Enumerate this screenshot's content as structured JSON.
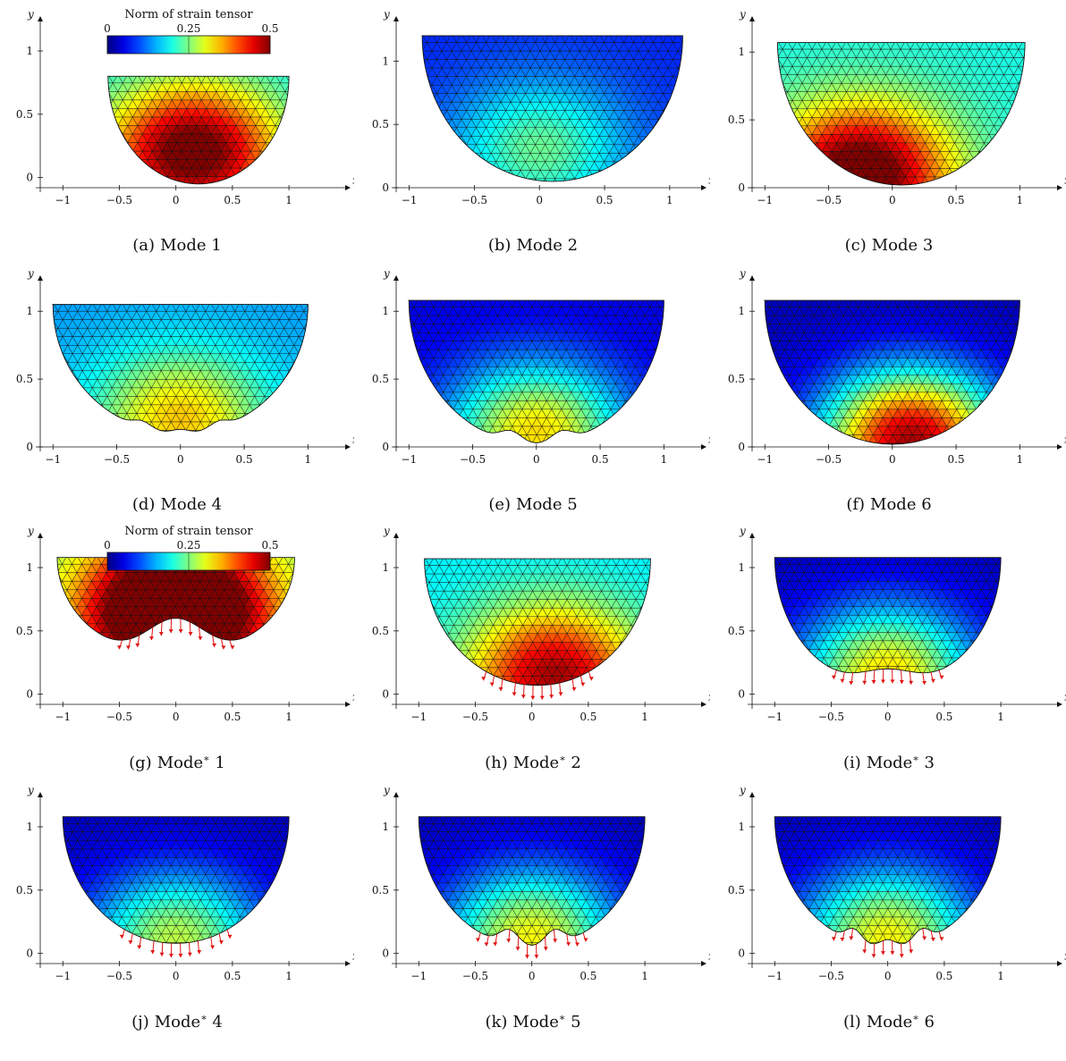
{
  "colorbar": {
    "title": "Norm of strain tensor",
    "ticks": [
      "0",
      "0.25",
      "0.5"
    ]
  },
  "axes": {
    "xlabel": "x",
    "ylabel": "y"
  },
  "panels": [
    {
      "id": "a",
      "label": "(a)",
      "caption": "Mode",
      "star": false,
      "number": "1",
      "xticks": [
        "−1",
        "−0.5",
        "0",
        "0.5",
        "1"
      ],
      "yticks": [
        "0",
        "0.5",
        "1"
      ],
      "xlim": [
        -1.2,
        1.45
      ],
      "ylim": [
        -0.08,
        1.12
      ],
      "top_y": 0.8,
      "bottom_y": -0.05,
      "half_width": 0.8,
      "center_x": 0.2,
      "dent": 0.0,
      "bumps": 0,
      "hot": 0.35,
      "hot_x": 0.15,
      "hot_y": 0.2,
      "base": 0.18,
      "colorbar": true,
      "arrows": false
    },
    {
      "id": "b",
      "label": "(b)",
      "caption": "Mode",
      "star": false,
      "number": "2",
      "xticks": [
        "−1",
        "−0.5",
        "0",
        "0.5",
        "1"
      ],
      "yticks": [
        "0",
        "0.5",
        "1"
      ],
      "xlim": [
        -1.1,
        1.2
      ],
      "ylim": [
        0,
        1.2
      ],
      "top_y": 1.2,
      "bottom_y": 0.05,
      "half_width": 1.0,
      "center_x": 0.1,
      "dent": 0.0,
      "bumps": 0,
      "hot": 0.16,
      "hot_x": 0.0,
      "hot_y": 0.3,
      "base": 0.08,
      "colorbar": false,
      "arrows": false
    },
    {
      "id": "c",
      "label": "(c)",
      "caption": "Mode",
      "star": false,
      "number": "3",
      "xticks": [
        "−1",
        "−0.5",
        "0",
        "0.5",
        "1"
      ],
      "yticks": [
        "0",
        "0.5",
        "1"
      ],
      "xlim": [
        -1.1,
        1.25
      ],
      "ylim": [
        0,
        1.12
      ],
      "top_y": 1.07,
      "bottom_y": 0.02,
      "half_width": 0.97,
      "center_x": 0.07,
      "dent": 0.0,
      "bumps": 0,
      "hot": 0.35,
      "hot_x": -0.25,
      "hot_y": 0.1,
      "base": 0.2,
      "colorbar": false,
      "arrows": false
    },
    {
      "id": "d",
      "label": "(d)",
      "caption": "Mode",
      "star": false,
      "number": "4",
      "xticks": [
        "−1",
        "−0.5",
        "0",
        "0.5",
        "1"
      ],
      "yticks": [
        "0",
        "0.5",
        "1"
      ],
      "xlim": [
        -1.1,
        1.25
      ],
      "ylim": [
        0,
        1.12
      ],
      "top_y": 1.05,
      "bottom_y": 0.1,
      "half_width": 1.0,
      "center_x": 0.0,
      "dent": 0.05,
      "bumps": 3,
      "hot": 0.2,
      "hot_x": 0.0,
      "hot_y": 0.2,
      "base": 0.14,
      "colorbar": false,
      "arrows": false
    },
    {
      "id": "e",
      "label": "(e)",
      "caption": "Mode",
      "star": false,
      "number": "5",
      "xticks": [
        "−1",
        "−0.5",
        "0",
        "0.5",
        "1"
      ],
      "yticks": [
        "0",
        "0.5",
        "1"
      ],
      "xlim": [
        -1.1,
        1.25
      ],
      "ylim": [
        0,
        1.12
      ],
      "top_y": 1.08,
      "bottom_y": 0.02,
      "half_width": 1.0,
      "center_x": 0.0,
      "dent": 0.08,
      "bumps": 2,
      "hot": 0.28,
      "hot_x": 0.0,
      "hot_y": 0.1,
      "base": 0.05,
      "colorbar": false,
      "arrows": false
    },
    {
      "id": "f",
      "label": "(f)",
      "caption": "Mode",
      "star": false,
      "number": "6",
      "xticks": [
        "−1",
        "−0.5",
        "0",
        "0.5",
        "1"
      ],
      "yticks": [
        "0",
        "0.5",
        "1"
      ],
      "xlim": [
        -1.1,
        1.25
      ],
      "ylim": [
        0,
        1.12
      ],
      "top_y": 1.08,
      "bottom_y": 0.02,
      "half_width": 1.0,
      "center_x": 0.0,
      "dent": 0.0,
      "bumps": 0,
      "hot": 0.45,
      "hot_x": 0.15,
      "hot_y": 0.05,
      "base": 0.03,
      "colorbar": false,
      "arrows": false
    },
    {
      "id": "g",
      "label": "(g)",
      "caption": "Mode",
      "star": true,
      "number": "1",
      "xticks": [
        "−1",
        "−0.5",
        "0",
        "0.5",
        "1"
      ],
      "yticks": [
        "0",
        "0.5",
        "1"
      ],
      "xlim": [
        -1.2,
        1.45
      ],
      "ylim": [
        -0.08,
        1.12
      ],
      "top_y": 1.08,
      "bottom_y": 0.28,
      "half_width": 1.05,
      "center_x": 0.0,
      "dent": 0.32,
      "bumps": 1,
      "hot": 0.48,
      "hot_x": 0.0,
      "hot_y": 0.65,
      "base": 0.24,
      "colorbar": true,
      "arrows": true
    },
    {
      "id": "h",
      "label": "(h)",
      "caption": "Mode",
      "star": true,
      "number": "2",
      "xticks": [
        "−1",
        "−0.5",
        "0",
        "0.5",
        "1"
      ],
      "yticks": [
        "0",
        "0.5",
        "1"
      ],
      "xlim": [
        -1.2,
        1.45
      ],
      "ylim": [
        -0.08,
        1.12
      ],
      "top_y": 1.07,
      "bottom_y": 0.07,
      "half_width": 1.0,
      "center_x": 0.05,
      "dent": 0.0,
      "bumps": 0,
      "hot": 0.3,
      "hot_x": 0.2,
      "hot_y": 0.15,
      "base": 0.18,
      "colorbar": false,
      "arrows": true
    },
    {
      "id": "i",
      "label": "(i)",
      "caption": "Mode",
      "star": true,
      "number": "3",
      "xticks": [
        "−1",
        "−0.5",
        "0",
        "0.5",
        "1"
      ],
      "yticks": [
        "0",
        "0.5",
        "1"
      ],
      "xlim": [
        -1.2,
        1.45
      ],
      "ylim": [
        -0.08,
        1.12
      ],
      "top_y": 1.08,
      "bottom_y": 0.05,
      "half_width": 1.0,
      "center_x": 0.0,
      "dent": 0.15,
      "bumps": 1,
      "hot": 0.3,
      "hot_x": 0.0,
      "hot_y": 0.15,
      "base": 0.03,
      "colorbar": false,
      "arrows": true
    },
    {
      "id": "j",
      "label": "(j)",
      "caption": "Mode",
      "star": true,
      "number": "4",
      "xticks": [
        "−1",
        "−0.5",
        "0",
        "0.5",
        "1"
      ],
      "yticks": [
        "0",
        "0.5",
        "1"
      ],
      "xlim": [
        -1.2,
        1.45
      ],
      "ylim": [
        -0.08,
        1.12
      ],
      "top_y": 1.08,
      "bottom_y": 0.08,
      "half_width": 1.0,
      "center_x": 0.0,
      "dent": 0.0,
      "bumps": 0,
      "hot": 0.25,
      "hot_x": 0.0,
      "hot_y": 0.1,
      "base": 0.03,
      "colorbar": false,
      "arrows": true
    },
    {
      "id": "k",
      "label": "(k)",
      "caption": "Mode",
      "star": true,
      "number": "5",
      "xticks": [
        "−1",
        "−0.5",
        "0",
        "0.5",
        "1"
      ],
      "yticks": [
        "0",
        "0.5",
        "1"
      ],
      "xlim": [
        -1.2,
        1.45
      ],
      "ylim": [
        -0.08,
        1.12
      ],
      "top_y": 1.08,
      "bottom_y": 0.05,
      "half_width": 1.0,
      "center_x": 0.0,
      "dent": 0.12,
      "bumps": 2,
      "hot": 0.28,
      "hot_x": 0.0,
      "hot_y": 0.12,
      "base": 0.03,
      "colorbar": false,
      "arrows": true
    },
    {
      "id": "l",
      "label": "(l)",
      "caption": "Mode",
      "star": true,
      "number": "6",
      "xticks": [
        "−1",
        "−0.5",
        "0",
        "0.5",
        "1"
      ],
      "yticks": [
        "0",
        "0.5",
        "1"
      ],
      "xlim": [
        -1.2,
        1.45
      ],
      "ylim": [
        -0.08,
        1.12
      ],
      "top_y": 1.08,
      "bottom_y": 0.05,
      "half_width": 1.0,
      "center_x": 0.0,
      "dent": 0.1,
      "bumps": 3,
      "hot": 0.28,
      "hot_x": 0.0,
      "hot_y": 0.12,
      "base": 0.03,
      "colorbar": false,
      "arrows": true
    }
  ]
}
